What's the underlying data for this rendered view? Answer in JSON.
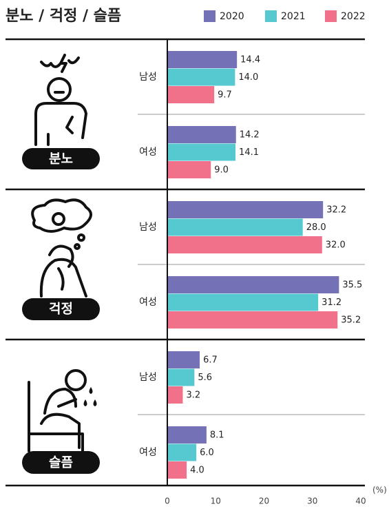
{
  "chart_data": {
    "type": "grouped-hbar",
    "title": "분노 / 걱정 / 슬픔",
    "groups": [
      "분노",
      "걱정",
      "슬픔"
    ],
    "categories": [
      "남성",
      "여성",
      "남성",
      "여성",
      "남성",
      "여성"
    ],
    "series": [
      {
        "name": "2020",
        "color": "#7571b6",
        "values": [
          14.4,
          14.2,
          32.2,
          35.5,
          6.7,
          8.1
        ],
        "value_labels": [
          "14.4",
          "14.2",
          "32.2",
          "35.5",
          "6.7",
          "8.1"
        ]
      },
      {
        "name": "2021",
        "color": "#55c8d0",
        "values": [
          14.0,
          14.1,
          28.0,
          31.2,
          5.6,
          6.0
        ],
        "value_labels": [
          "14.0",
          "14.1",
          "28.0",
          "31.2",
          "5.6",
          "6.0"
        ]
      },
      {
        "name": "2022",
        "color": "#f1718a",
        "values": [
          9.7,
          9.0,
          32.0,
          35.2,
          3.2,
          4.0
        ],
        "value_labels": [
          "9.7",
          "9.0",
          "32.0",
          "35.2",
          "3.2",
          "4.0"
        ]
      }
    ],
    "xlim": [
      0,
      40
    ],
    "xticks": [
      0,
      10,
      20,
      30,
      40
    ],
    "x_unit_label": "(%)",
    "legend": "top-right"
  }
}
